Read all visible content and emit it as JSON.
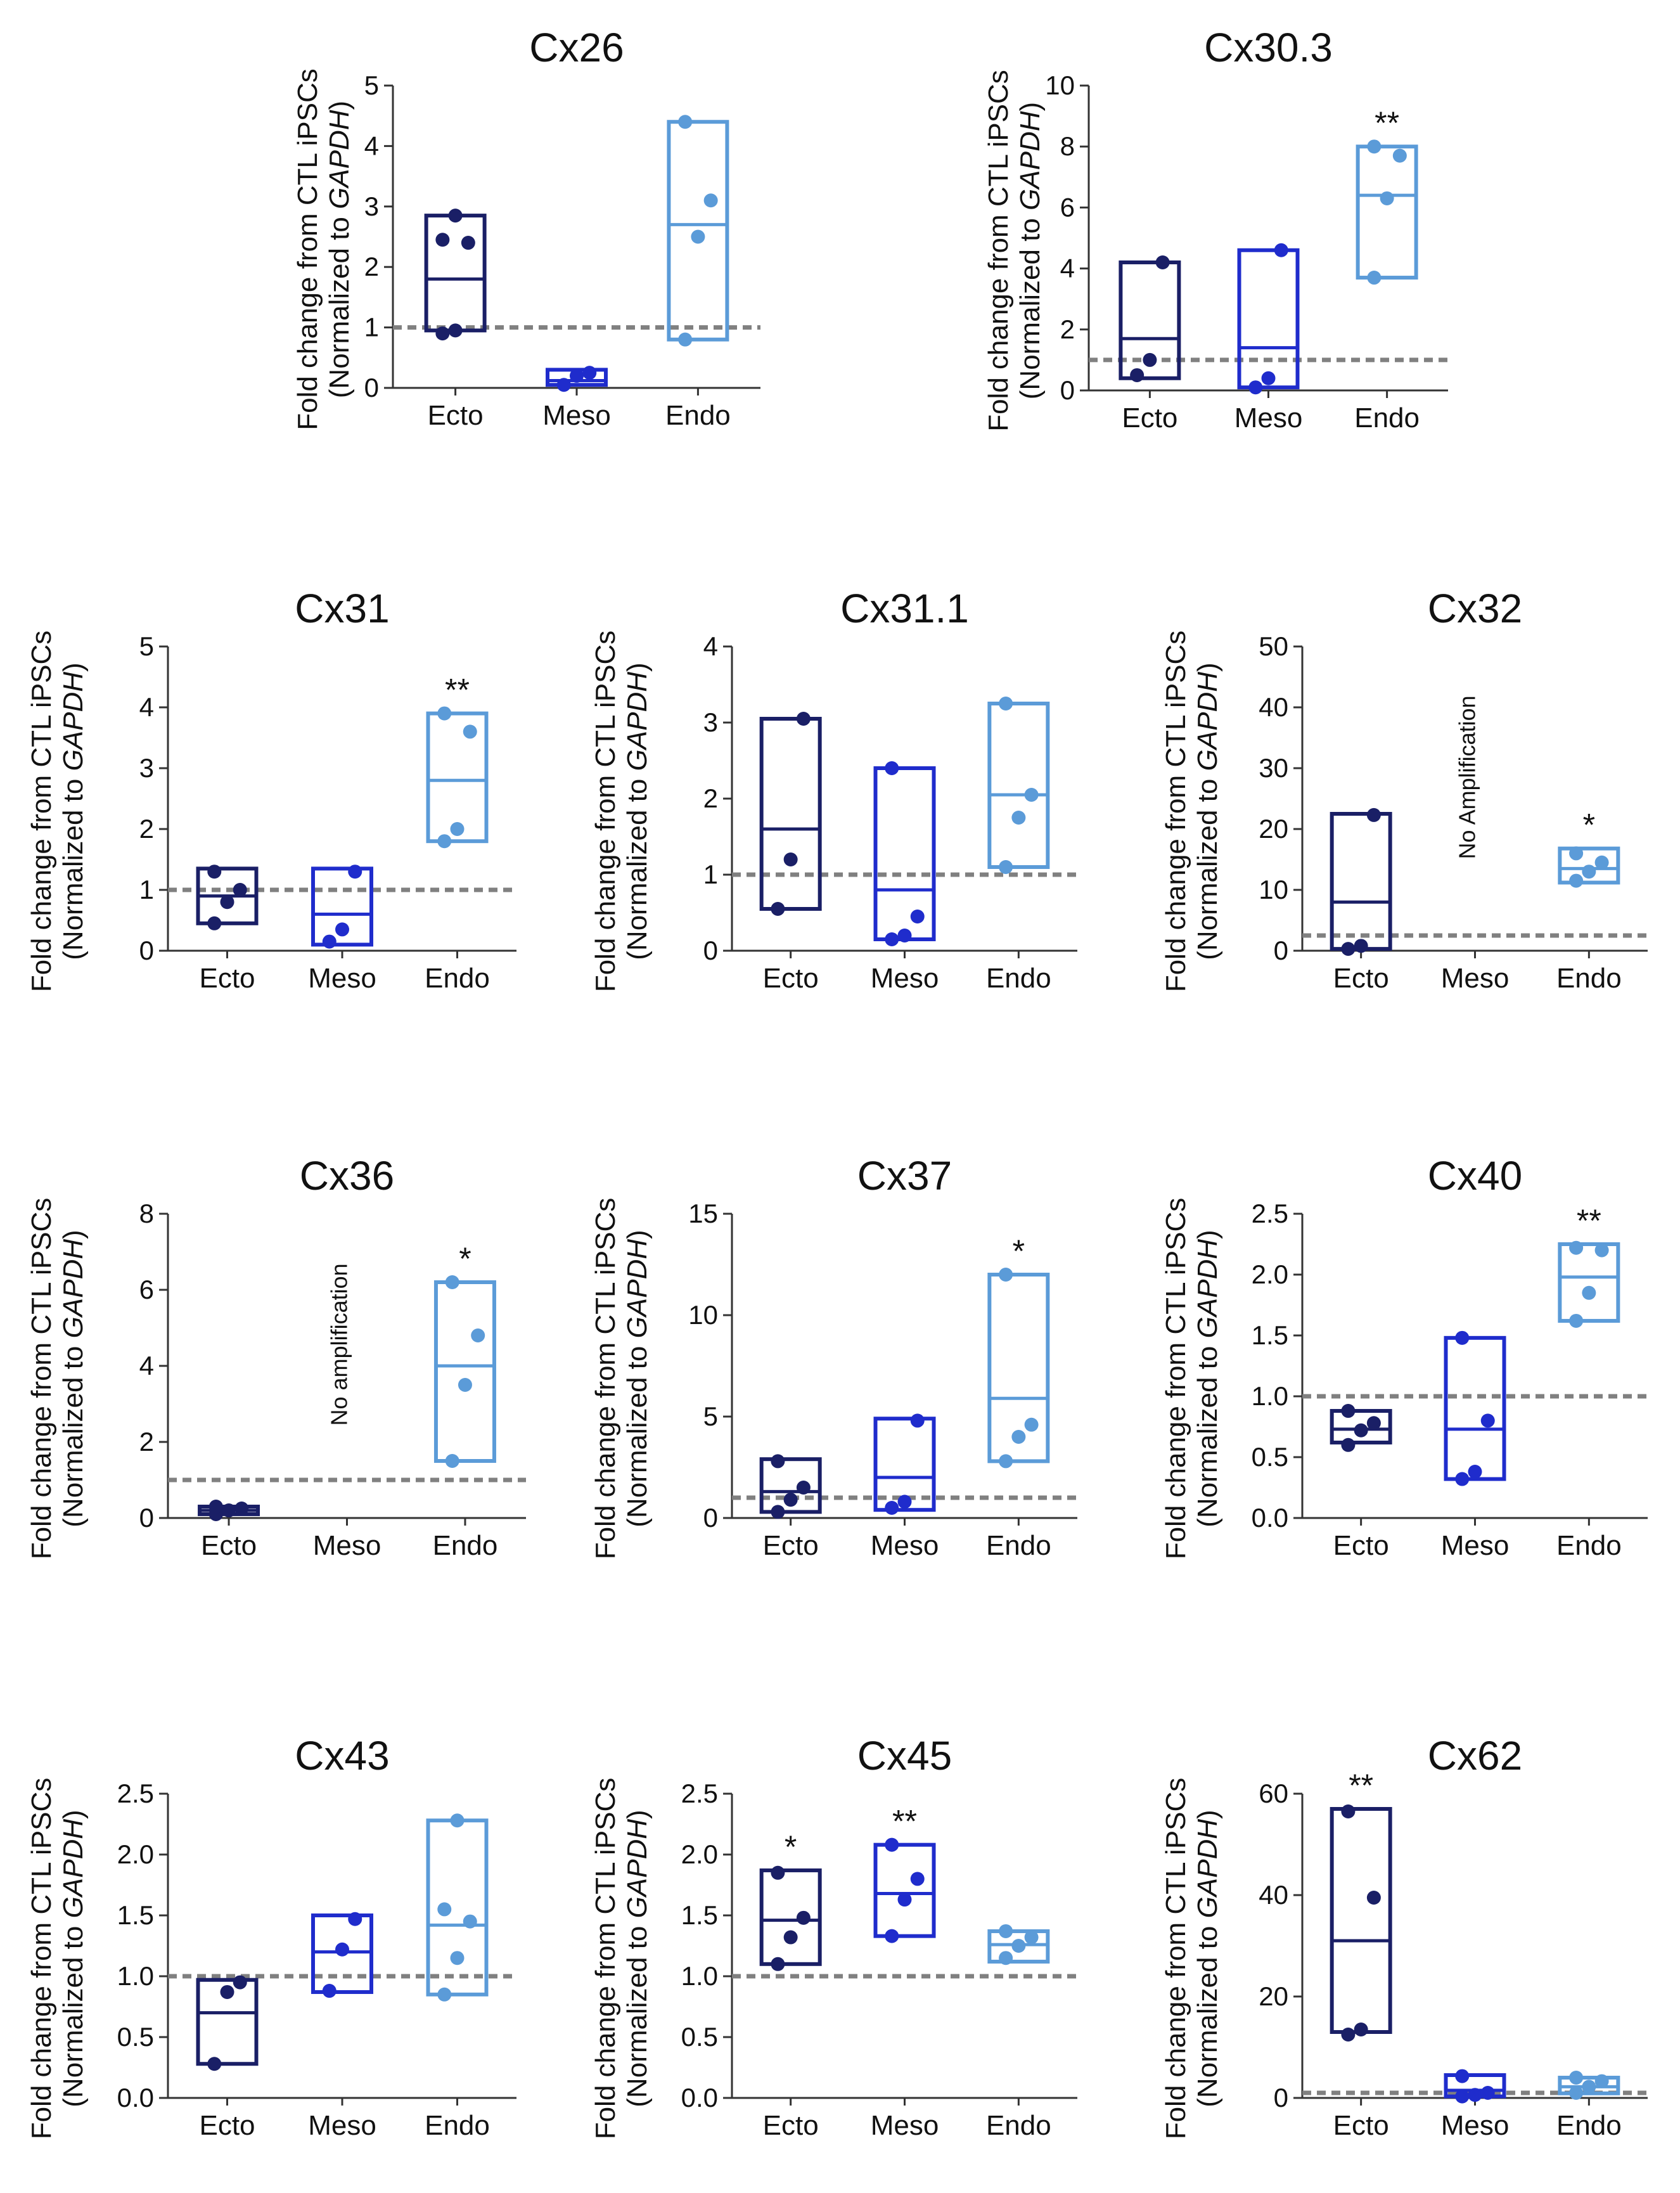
{
  "figure": {
    "ylabel_line1": "Fold change from CTL iPSCs",
    "ylabel_line2_prefix": "(Normalized to ",
    "ylabel_line2_italic": "GAPDH",
    "ylabel_line2_suffix": ")",
    "colors": {
      "Ecto": "#1a1f66",
      "Meso": "#1f2ccc",
      "Endo": "#5b9bd8",
      "reference": "#808080"
    }
  },
  "chart_data": [
    {
      "type": "box",
      "title": "Cx26",
      "categories": [
        "Ecto",
        "Meso",
        "Endo"
      ],
      "ylim": [
        0,
        5
      ],
      "yticks": [
        0,
        1,
        2,
        3,
        4,
        5
      ],
      "ytick_labels": [
        "0",
        "1",
        "2",
        "3",
        "4",
        "5"
      ],
      "reference_line": 1,
      "series": [
        {
          "name": "Ecto",
          "min": 0.95,
          "median": 1.8,
          "max": 2.85,
          "points": [
            0.9,
            0.95,
            2.4,
            2.45,
            2.85
          ],
          "sig": ""
        },
        {
          "name": "Meso",
          "min": 0.05,
          "median": 0.12,
          "max": 0.3,
          "points": [
            0.05,
            0.2,
            0.25
          ],
          "sig": ""
        },
        {
          "name": "Endo",
          "min": 0.8,
          "median": 2.7,
          "max": 4.4,
          "points": [
            0.8,
            2.5,
            3.1,
            4.4
          ],
          "sig": ""
        }
      ]
    },
    {
      "type": "box",
      "title": "Cx30.3",
      "categories": [
        "Ecto",
        "Meso",
        "Endo"
      ],
      "ylim": [
        0,
        10
      ],
      "yticks": [
        0,
        2,
        4,
        6,
        8,
        10
      ],
      "ytick_labels": [
        "0",
        "2",
        "4",
        "6",
        "8",
        "10"
      ],
      "reference_line": 1,
      "series": [
        {
          "name": "Ecto",
          "min": 0.4,
          "median": 1.7,
          "max": 4.2,
          "points": [
            0.5,
            1.0,
            4.2
          ],
          "sig": ""
        },
        {
          "name": "Meso",
          "min": 0.1,
          "median": 1.4,
          "max": 4.6,
          "points": [
            0.1,
            0.4,
            4.6
          ],
          "sig": ""
        },
        {
          "name": "Endo",
          "min": 3.7,
          "median": 6.4,
          "max": 8.0,
          "points": [
            3.7,
            6.3,
            7.7,
            8.0
          ],
          "sig": "**"
        }
      ]
    },
    {
      "type": "box",
      "title": "Cx31",
      "categories": [
        "Ecto",
        "Meso",
        "Endo"
      ],
      "ylim": [
        0,
        5
      ],
      "yticks": [
        0,
        1,
        2,
        3,
        4,
        5
      ],
      "ytick_labels": [
        "0",
        "1",
        "2",
        "3",
        "4",
        "5"
      ],
      "reference_line": 1,
      "series": [
        {
          "name": "Ecto",
          "min": 0.45,
          "median": 0.9,
          "max": 1.35,
          "points": [
            0.45,
            0.8,
            1.0,
            1.3
          ],
          "sig": ""
        },
        {
          "name": "Meso",
          "min": 0.1,
          "median": 0.6,
          "max": 1.35,
          "points": [
            0.15,
            0.35,
            1.3
          ],
          "sig": ""
        },
        {
          "name": "Endo",
          "min": 1.8,
          "median": 2.8,
          "max": 3.9,
          "points": [
            1.8,
            2.0,
            3.6,
            3.9
          ],
          "sig": "**"
        }
      ]
    },
    {
      "type": "box",
      "title": "Cx31.1",
      "categories": [
        "Ecto",
        "Meso",
        "Endo"
      ],
      "ylim": [
        0,
        4
      ],
      "yticks": [
        0,
        1,
        2,
        3,
        4
      ],
      "ytick_labels": [
        "0",
        "1",
        "2",
        "3",
        "4"
      ],
      "reference_line": 1,
      "series": [
        {
          "name": "Ecto",
          "min": 0.55,
          "median": 1.6,
          "max": 3.05,
          "points": [
            0.55,
            1.2,
            3.05
          ],
          "sig": ""
        },
        {
          "name": "Meso",
          "min": 0.15,
          "median": 0.8,
          "max": 2.4,
          "points": [
            0.15,
            0.2,
            0.45,
            2.4
          ],
          "sig": ""
        },
        {
          "name": "Endo",
          "min": 1.1,
          "median": 2.05,
          "max": 3.25,
          "points": [
            1.1,
            1.75,
            2.05,
            3.25
          ],
          "sig": ""
        }
      ]
    },
    {
      "type": "box",
      "title": "Cx32",
      "categories": [
        "Ecto",
        "Meso",
        "Endo"
      ],
      "ylim": [
        0,
        50
      ],
      "yticks": [
        0,
        10,
        20,
        30,
        40,
        50
      ],
      "ytick_labels": [
        "0",
        "10",
        "20",
        "30",
        "40",
        "50"
      ],
      "reference_line": 2.5,
      "annotation": {
        "category": "Meso",
        "text": "No Amplification"
      },
      "series": [
        {
          "name": "Ecto",
          "min": 0.3,
          "median": 8.0,
          "max": 22.5,
          "points": [
            0.3,
            0.8,
            22.3
          ],
          "sig": ""
        },
        {
          "name": "Meso",
          "min": null,
          "median": null,
          "max": null,
          "points": [],
          "sig": ""
        },
        {
          "name": "Endo",
          "min": 11.2,
          "median": 13.5,
          "max": 16.8,
          "points": [
            11.5,
            13.0,
            14.5,
            16.0
          ],
          "sig": "*"
        }
      ]
    },
    {
      "type": "box",
      "title": "Cx36",
      "categories": [
        "Ecto",
        "Meso",
        "Endo"
      ],
      "ylim": [
        0,
        8
      ],
      "yticks": [
        0,
        2,
        4,
        6,
        8
      ],
      "ytick_labels": [
        "0",
        "2",
        "4",
        "6",
        "8"
      ],
      "reference_line": 1,
      "annotation": {
        "category": "Meso",
        "text": "No amplification"
      },
      "series": [
        {
          "name": "Ecto",
          "min": 0.1,
          "median": 0.2,
          "max": 0.3,
          "points": [
            0.1,
            0.2,
            0.25,
            0.3
          ],
          "sig": ""
        },
        {
          "name": "Meso",
          "min": null,
          "median": null,
          "max": null,
          "points": [],
          "sig": ""
        },
        {
          "name": "Endo",
          "min": 1.5,
          "median": 4.0,
          "max": 6.2,
          "points": [
            1.5,
            3.5,
            4.8,
            6.2
          ],
          "sig": "*"
        }
      ]
    },
    {
      "type": "box",
      "title": "Cx37",
      "categories": [
        "Ecto",
        "Meso",
        "Endo"
      ],
      "ylim": [
        0,
        15
      ],
      "yticks": [
        0,
        5,
        10,
        15
      ],
      "ytick_labels": [
        "0",
        "5",
        "10",
        "15"
      ],
      "reference_line": 1,
      "series": [
        {
          "name": "Ecto",
          "min": 0.3,
          "median": 1.3,
          "max": 2.9,
          "points": [
            0.3,
            0.9,
            1.5,
            2.8
          ],
          "sig": ""
        },
        {
          "name": "Meso",
          "min": 0.4,
          "median": 2.0,
          "max": 4.9,
          "points": [
            0.5,
            0.8,
            4.8
          ],
          "sig": ""
        },
        {
          "name": "Endo",
          "min": 2.8,
          "median": 5.9,
          "max": 12.0,
          "points": [
            2.8,
            4.0,
            4.6,
            12.0
          ],
          "sig": "*"
        }
      ]
    },
    {
      "type": "box",
      "title": "Cx40",
      "categories": [
        "Ecto",
        "Meso",
        "Endo"
      ],
      "ylim": [
        0,
        2.5
      ],
      "yticks": [
        0,
        0.5,
        1.0,
        1.5,
        2.0,
        2.5
      ],
      "ytick_labels": [
        "0.0",
        "0.5",
        "1.0",
        "1.5",
        "2.0",
        "2.5"
      ],
      "reference_line": 1.0,
      "series": [
        {
          "name": "Ecto",
          "min": 0.62,
          "median": 0.73,
          "max": 0.88,
          "points": [
            0.6,
            0.72,
            0.78,
            0.88
          ],
          "sig": ""
        },
        {
          "name": "Meso",
          "min": 0.32,
          "median": 0.73,
          "max": 1.48,
          "points": [
            0.32,
            0.38,
            0.8,
            1.48
          ],
          "sig": ""
        },
        {
          "name": "Endo",
          "min": 1.62,
          "median": 1.98,
          "max": 2.25,
          "points": [
            1.62,
            1.85,
            2.2,
            2.22
          ],
          "sig": "**"
        }
      ]
    },
    {
      "type": "box",
      "title": "Cx43",
      "categories": [
        "Ecto",
        "Meso",
        "Endo"
      ],
      "ylim": [
        0,
        2.5
      ],
      "yticks": [
        0,
        0.5,
        1.0,
        1.5,
        2.0,
        2.5
      ],
      "ytick_labels": [
        "0.0",
        "0.5",
        "1.0",
        "1.5",
        "2.0",
        "2.5"
      ],
      "reference_line": 1.0,
      "series": [
        {
          "name": "Ecto",
          "min": 0.28,
          "median": 0.7,
          "max": 0.97,
          "points": [
            0.28,
            0.87,
            0.95
          ],
          "sig": ""
        },
        {
          "name": "Meso",
          "min": 0.87,
          "median": 1.2,
          "max": 1.5,
          "points": [
            0.88,
            1.22,
            1.47
          ],
          "sig": ""
        },
        {
          "name": "Endo",
          "min": 0.85,
          "median": 1.42,
          "max": 2.28,
          "points": [
            0.85,
            1.15,
            1.45,
            1.55,
            2.28
          ],
          "sig": ""
        }
      ]
    },
    {
      "type": "box",
      "title": "Cx45",
      "categories": [
        "Ecto",
        "Meso",
        "Endo"
      ],
      "ylim": [
        0,
        2.5
      ],
      "yticks": [
        0,
        0.5,
        1.0,
        1.5,
        2.0,
        2.5
      ],
      "ytick_labels": [
        "0.0",
        "0.5",
        "1.0",
        "1.5",
        "2.0",
        "2.5"
      ],
      "reference_line": 1.0,
      "series": [
        {
          "name": "Ecto",
          "min": 1.1,
          "median": 1.46,
          "max": 1.87,
          "points": [
            1.1,
            1.32,
            1.48,
            1.85
          ],
          "sig": "*"
        },
        {
          "name": "Meso",
          "min": 1.33,
          "median": 1.68,
          "max": 2.08,
          "points": [
            1.33,
            1.63,
            1.8,
            2.08
          ],
          "sig": "**"
        },
        {
          "name": "Endo",
          "min": 1.12,
          "median": 1.26,
          "max": 1.37,
          "points": [
            1.15,
            1.25,
            1.32,
            1.37
          ],
          "sig": ""
        }
      ]
    },
    {
      "type": "box",
      "title": "Cx62",
      "categories": [
        "Ecto",
        "Meso",
        "Endo"
      ],
      "ylim": [
        0,
        60
      ],
      "yticks": [
        0,
        20,
        40,
        60
      ],
      "ytick_labels": [
        "0",
        "20",
        "40",
        "60"
      ],
      "reference_line": 1,
      "series": [
        {
          "name": "Ecto",
          "min": 13.0,
          "median": 31.0,
          "max": 57.0,
          "points": [
            12.5,
            13.5,
            39.5,
            56.5
          ],
          "sig": "**"
        },
        {
          "name": "Meso",
          "min": 0.3,
          "median": 1.5,
          "max": 4.5,
          "points": [
            0.3,
            0.6,
            1.0,
            4.3
          ],
          "sig": ""
        },
        {
          "name": "Endo",
          "min": 0.9,
          "median": 2.2,
          "max": 4.0,
          "points": [
            1.0,
            2.2,
            3.3,
            4.0
          ],
          "sig": ""
        }
      ]
    }
  ]
}
